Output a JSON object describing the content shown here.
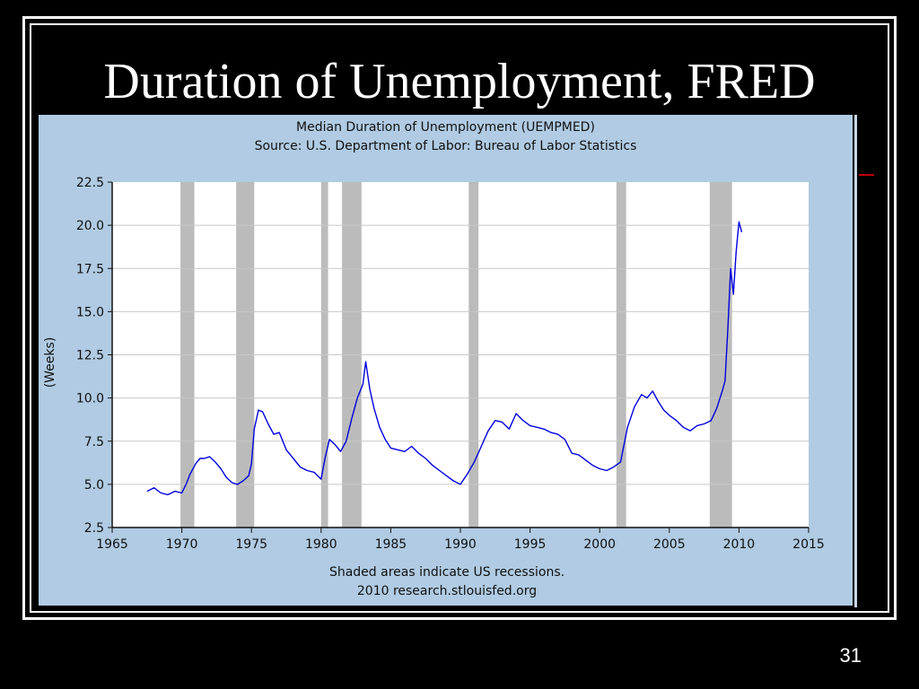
{
  "slide": {
    "title": "Duration of Unemployment, FRED",
    "page_number": "31"
  },
  "colors": {
    "background": "#000000",
    "chart_panel": "#b0cbe3",
    "plot_area": "#ffffff",
    "recession_shade": "#bbbbbb",
    "series_line": "#0000dd"
  },
  "chart_data": {
    "type": "line",
    "title": "Median Duration of Unemployment (UEMPMED)",
    "subtitle": "Source: U.S. Department of Labor: Bureau of Labor Statistics",
    "ylabel": "(Weeks)",
    "xlabel": "",
    "footer": [
      "Shaded areas indicate US recessions.",
      "2010 research.stlouisfed.org"
    ],
    "xlim": [
      1965,
      2015
    ],
    "ylim": [
      2.5,
      22.5
    ],
    "x_ticks": [
      1965,
      1970,
      1975,
      1980,
      1985,
      1990,
      1995,
      2000,
      2005,
      2010,
      2015
    ],
    "x_tick_labels": [
      "1965",
      "1970",
      "1975",
      "1980",
      "1985",
      "1990",
      "1995",
      "2000",
      "2005",
      "2010",
      "2015"
    ],
    "y_ticks": [
      2.5,
      5.0,
      7.5,
      10.0,
      12.5,
      15.0,
      17.5,
      20.0,
      22.5
    ],
    "y_tick_labels": [
      "2.5",
      "5.0",
      "7.5",
      "10.0",
      "12.5",
      "15.0",
      "17.5",
      "20.0",
      "22.5"
    ],
    "grid": "horizontal",
    "recessions": [
      [
        1969.9,
        1970.9
      ],
      [
        1973.9,
        1975.2
      ],
      [
        1980.0,
        1980.5
      ],
      [
        1981.5,
        1982.9
      ],
      [
        1990.6,
        1991.3
      ],
      [
        2001.2,
        2001.9
      ],
      [
        2007.9,
        2009.5
      ]
    ],
    "series": [
      {
        "x": [
          1967.5,
          1968.0,
          1968.5,
          1969.0,
          1969.5,
          1970.0,
          1970.3,
          1970.6,
          1971.0,
          1971.3,
          1971.6,
          1972.0,
          1972.4,
          1972.8,
          1973.2,
          1973.6,
          1974.0,
          1974.4,
          1974.8,
          1975.0,
          1975.2,
          1975.5,
          1975.8,
          1976.2,
          1976.6,
          1977.0,
          1977.5,
          1978.0,
          1978.5,
          1979.0,
          1979.5,
          1980.0,
          1980.3,
          1980.6,
          1981.0,
          1981.4,
          1981.8,
          1982.2,
          1982.6,
          1983.0,
          1983.2,
          1983.5,
          1983.8,
          1984.2,
          1984.6,
          1985.0,
          1985.5,
          1986.0,
          1986.5,
          1987.0,
          1987.5,
          1988.0,
          1988.5,
          1989.0,
          1989.5,
          1990.0,
          1990.5,
          1991.0,
          1991.5,
          1992.0,
          1992.5,
          1993.0,
          1993.5,
          1994.0,
          1994.5,
          1995.0,
          1995.5,
          1996.0,
          1996.5,
          1997.0,
          1997.5,
          1998.0,
          1998.5,
          1999.0,
          1999.5,
          2000.0,
          2000.5,
          2001.0,
          2001.5,
          2002.0,
          2002.5,
          2003.0,
          2003.4,
          2003.8,
          2004.2,
          2004.6,
          2005.0,
          2005.5,
          2006.0,
          2006.5,
          2007.0,
          2007.5,
          2008.0,
          2008.4,
          2008.8,
          2009.0,
          2009.2,
          2009.4,
          2009.6,
          2009.8,
          2010.0,
          2010.2
        ],
        "y": [
          4.6,
          4.8,
          4.5,
          4.4,
          4.6,
          4.5,
          5.0,
          5.6,
          6.2,
          6.5,
          6.5,
          6.6,
          6.3,
          5.9,
          5.4,
          5.1,
          5.0,
          5.2,
          5.5,
          6.2,
          8.2,
          9.3,
          9.2,
          8.5,
          7.9,
          8.0,
          7.0,
          6.5,
          6.0,
          5.8,
          5.7,
          5.3,
          6.6,
          7.6,
          7.3,
          6.9,
          7.5,
          8.8,
          10.0,
          10.8,
          12.1,
          10.5,
          9.4,
          8.3,
          7.6,
          7.1,
          7.0,
          6.9,
          7.2,
          6.8,
          6.5,
          6.1,
          5.8,
          5.5,
          5.2,
          5.0,
          5.6,
          6.3,
          7.2,
          8.1,
          8.7,
          8.6,
          8.2,
          9.1,
          8.7,
          8.4,
          8.3,
          8.2,
          8.0,
          7.9,
          7.6,
          6.8,
          6.7,
          6.4,
          6.1,
          5.9,
          5.8,
          6.0,
          6.3,
          8.3,
          9.5,
          10.2,
          10.0,
          10.4,
          9.8,
          9.3,
          9.0,
          8.7,
          8.3,
          8.1,
          8.4,
          8.5,
          8.7,
          9.4,
          10.4,
          11.0,
          14.0,
          17.5,
          16.0,
          18.5,
          20.2,
          19.6
        ]
      }
    ]
  }
}
